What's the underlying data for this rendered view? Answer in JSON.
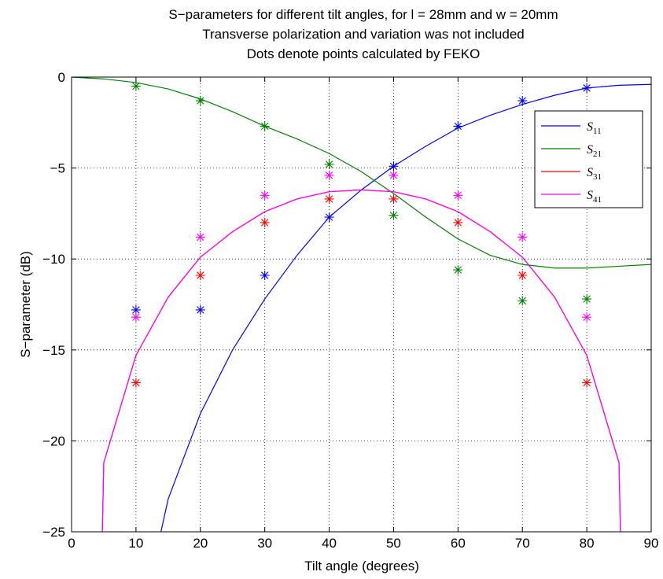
{
  "chart_data": {
    "type": "line",
    "title_lines": [
      "S−parameters for different tilt angles, for l = 28mm and w = 20mm",
      "Transverse polarization and variation was not included",
      "Dots denote points calculated by FEKO"
    ],
    "xlabel": "Tilt angle (degrees)",
    "ylabel": "S−parameter (dB)",
    "xlim": [
      0,
      90
    ],
    "ylim": [
      -25,
      0
    ],
    "xticks": [
      0,
      10,
      20,
      30,
      40,
      50,
      60,
      70,
      80,
      90
    ],
    "xtick_labels": [
      "0",
      "10",
      "20",
      "30",
      "40",
      "50",
      "60",
      "70",
      "80",
      "90"
    ],
    "yticks": [
      -25,
      -20,
      -15,
      -10,
      -5,
      0
    ],
    "ytick_labels": [
      "−25",
      "−20",
      "−15",
      "−10",
      "−5",
      "0"
    ],
    "grid": true,
    "legend_position": "top-right",
    "series": [
      {
        "name": "S11",
        "legend_main": "S",
        "legend_sub": "11",
        "color": "#0000ff",
        "line_x": [
          12,
          15,
          20,
          25,
          30,
          35,
          40,
          45,
          50,
          55,
          60,
          65,
          70,
          75,
          80,
          85,
          90
        ],
        "line_y": [
          -28,
          -23.2,
          -18.5,
          -15,
          -12.2,
          -9.8,
          -7.7,
          -6.2,
          -4.9,
          -3.8,
          -2.8,
          -2.1,
          -1.5,
          -1.0,
          -0.6,
          -0.45,
          -0.4
        ],
        "points_x": [
          10,
          20,
          30,
          40,
          50,
          60,
          70,
          80
        ],
        "points_y": [
          -12.8,
          -12.8,
          -10.9,
          -7.7,
          -4.9,
          -2.7,
          -1.3,
          -0.6
        ]
      },
      {
        "name": "S21",
        "legend_main": "S",
        "legend_sub": "21",
        "color": "#008000",
        "line_x": [
          0,
          5,
          10,
          15,
          20,
          25,
          30,
          35,
          40,
          45,
          50,
          55,
          60,
          65,
          70,
          75,
          80,
          85,
          90
        ],
        "line_y": [
          0,
          -0.1,
          -0.3,
          -0.65,
          -1.2,
          -1.9,
          -2.7,
          -3.4,
          -4.2,
          -5.2,
          -6.4,
          -7.7,
          -8.9,
          -9.8,
          -10.3,
          -10.5,
          -10.5,
          -10.4,
          -10.3
        ],
        "points_x": [
          10,
          20,
          30,
          40,
          50,
          60,
          70,
          80
        ],
        "points_y": [
          -0.5,
          -1.3,
          -2.7,
          -4.8,
          -7.6,
          -10.6,
          -12.3,
          -12.2
        ]
      },
      {
        "name": "S31",
        "legend_main": "S",
        "legend_sub": "31",
        "color": "#ff0000",
        "line_x": [
          4.6,
          5,
          10,
          15,
          20,
          25,
          30,
          35,
          40,
          45,
          50,
          55,
          60,
          65,
          70,
          75,
          80,
          85,
          85.4
        ],
        "line_y": [
          -28,
          -21.2,
          -15.3,
          -12.1,
          -9.9,
          -8.5,
          -7.4,
          -6.7,
          -6.3,
          -6.2,
          -6.3,
          -6.7,
          -7.4,
          -8.5,
          -9.9,
          -12.1,
          -15.3,
          -21.2,
          -28
        ],
        "points_x": [
          10,
          20,
          30,
          40,
          50,
          60,
          70,
          80
        ],
        "points_y": [
          -16.8,
          -10.9,
          -8.0,
          -6.7,
          -6.7,
          -8.0,
          -10.9,
          -16.8
        ]
      },
      {
        "name": "S41",
        "legend_main": "S",
        "legend_sub": "41",
        "color": "#ff00ff",
        "line_x": [
          4.6,
          5,
          10,
          15,
          20,
          25,
          30,
          35,
          40,
          45,
          50,
          55,
          60,
          65,
          70,
          75,
          80,
          85,
          85.4
        ],
        "line_y": [
          -28,
          -21.2,
          -15.3,
          -12.1,
          -9.9,
          -8.5,
          -7.4,
          -6.7,
          -6.3,
          -6.2,
          -6.3,
          -6.7,
          -7.4,
          -8.5,
          -9.9,
          -12.1,
          -15.3,
          -21.2,
          -28
        ],
        "points_x": [
          10,
          20,
          30,
          40,
          50,
          60,
          70,
          80
        ],
        "points_y": [
          -13.2,
          -8.8,
          -6.5,
          -5.4,
          -5.4,
          -6.5,
          -8.8,
          -13.2
        ]
      }
    ]
  }
}
